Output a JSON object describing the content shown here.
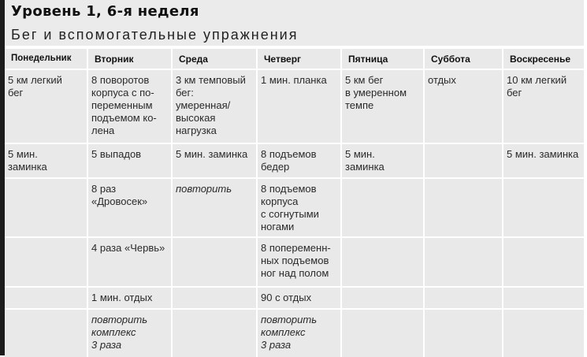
{
  "title": "Уровень 1, 6-я неделя",
  "subtitle": "Бег и вспомогательные упражнения",
  "table": {
    "headers": [
      "Понедельник",
      "Вторник",
      "Среда",
      "Четверг",
      "Пятница",
      "Суббота",
      "Воскресенье"
    ],
    "rows": [
      [
        {
          "text": "5 км легкий\nбег"
        },
        {
          "text": "8 поворотов\nкорпуса с по-\nпеременным\nподъемом ко-\nлена"
        },
        {
          "text": "3 км темповый\nбег:\nумеренная/\nвысокая\nнагрузка"
        },
        {
          "text": "1 мин. планка"
        },
        {
          "text": "5 км бег\nв умеренном\nтемпе"
        },
        {
          "text": "отдых"
        },
        {
          "text": "10 км легкий\nбег"
        }
      ],
      [
        {
          "text": "5 мин.\nзаминка"
        },
        {
          "text": "5 выпадов"
        },
        {
          "text": "5 мин. заминка"
        },
        {
          "text": "8 подъемов\nбедер"
        },
        {
          "text": "5 мин.\nзаминка"
        },
        {
          "text": ""
        },
        {
          "text": "5 мин. заминка"
        }
      ],
      [
        {
          "text": ""
        },
        {
          "text": "8 раз\n«Дровосек»"
        },
        {
          "text": "повторить",
          "italic": true
        },
        {
          "text": "8 подъемов\nкорпуса\nс согнутыми\nногами"
        },
        {
          "text": ""
        },
        {
          "text": ""
        },
        {
          "text": ""
        }
      ],
      [
        {
          "text": ""
        },
        {
          "text": "4 раза «Червь»"
        },
        {
          "text": ""
        },
        {
          "text": "8 попеременн-\nных подъемов\nног над полом"
        },
        {
          "text": ""
        },
        {
          "text": ""
        },
        {
          "text": ""
        }
      ],
      [
        {
          "text": ""
        },
        {
          "text": "1 мин. отдых"
        },
        {
          "text": ""
        },
        {
          "text": "90 с отдых"
        },
        {
          "text": ""
        },
        {
          "text": ""
        },
        {
          "text": ""
        }
      ],
      [
        {
          "text": ""
        },
        {
          "text": "повторить\nкомплекс\n3 раза",
          "italic": true
        },
        {
          "text": ""
        },
        {
          "text": "повторить\nкомплекс\n3 раза",
          "italic": true
        },
        {
          "text": ""
        },
        {
          "text": ""
        },
        {
          "text": ""
        }
      ]
    ]
  }
}
